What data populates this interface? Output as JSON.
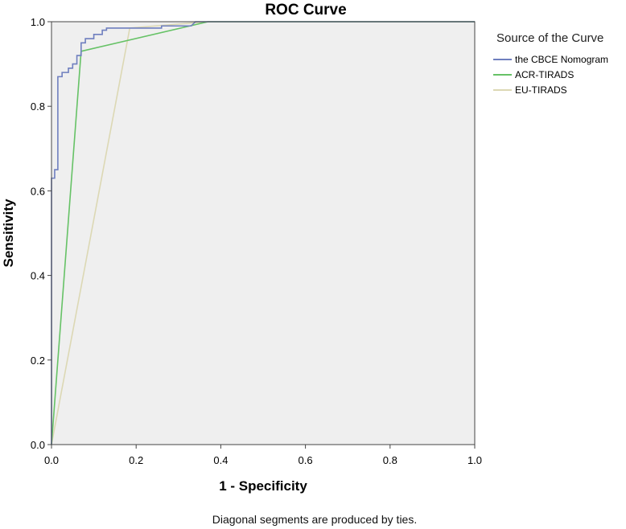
{
  "chart_data": {
    "type": "line",
    "title": "ROC Curve",
    "xlabel": "1 - Specificity",
    "ylabel": "Sensitivity",
    "xlim": [
      0.0,
      1.0
    ],
    "ylim": [
      0.0,
      1.0
    ],
    "x_ticks": [
      "0.0",
      "0.2",
      "0.4",
      "0.6",
      "0.8",
      "1.0"
    ],
    "y_ticks": [
      "0.0",
      "0.2",
      "0.4",
      "0.6",
      "0.8",
      "1.0"
    ],
    "grid": false,
    "legend_position": "top-right",
    "legend_title": "Source of the Curve",
    "footnote": "Diagonal segments are produced by ties.",
    "colors": {
      "plot_background": "#efefef",
      "page_background": "#ffffff"
    },
    "series": [
      {
        "name": "the CBCE Nomogram",
        "color": "#6f7fbf",
        "points": [
          [
            0.0,
            0.0
          ],
          [
            0.0,
            0.63
          ],
          [
            0.0075,
            0.63
          ],
          [
            0.0075,
            0.65
          ],
          [
            0.015,
            0.65
          ],
          [
            0.015,
            0.87
          ],
          [
            0.025,
            0.87
          ],
          [
            0.025,
            0.88
          ],
          [
            0.04,
            0.88
          ],
          [
            0.04,
            0.89
          ],
          [
            0.05,
            0.89
          ],
          [
            0.05,
            0.9
          ],
          [
            0.06,
            0.9
          ],
          [
            0.06,
            0.92
          ],
          [
            0.07,
            0.92
          ],
          [
            0.07,
            0.95
          ],
          [
            0.08,
            0.95
          ],
          [
            0.08,
            0.96
          ],
          [
            0.1,
            0.96
          ],
          [
            0.1,
            0.97
          ],
          [
            0.12,
            0.97
          ],
          [
            0.12,
            0.98
          ],
          [
            0.13,
            0.98
          ],
          [
            0.13,
            0.985
          ],
          [
            0.2,
            0.985
          ],
          [
            0.26,
            0.985
          ],
          [
            0.26,
            0.99
          ],
          [
            0.33,
            0.99
          ],
          [
            0.34,
            1.0
          ],
          [
            1.0,
            1.0
          ]
        ]
      },
      {
        "name": "ACR-TIRADS",
        "color": "#66c266",
        "points": [
          [
            0.0,
            0.0
          ],
          [
            0.07,
            0.93
          ],
          [
            0.37,
            1.0
          ],
          [
            1.0,
            1.0
          ]
        ]
      },
      {
        "name": "EU-TIRADS",
        "color": "#dcd8b4",
        "points": [
          [
            0.0,
            0.0
          ],
          [
            0.185,
            0.985
          ],
          [
            0.37,
            1.0
          ],
          [
            1.0,
            1.0
          ]
        ]
      }
    ]
  }
}
